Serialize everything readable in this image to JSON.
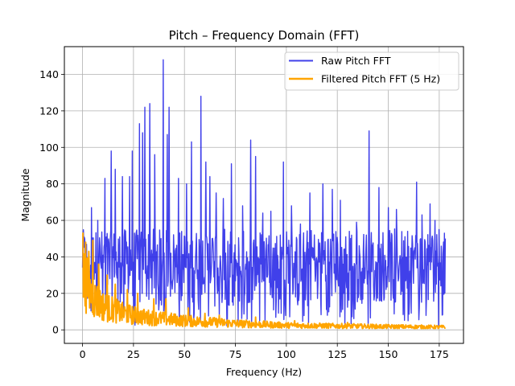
{
  "chart_data": {
    "type": "line",
    "title": "Pitch – Frequency Domain (FFT)",
    "xlabel": "Frequency (Hz)",
    "ylabel": "Magnitude",
    "xlim": [
      -8.9,
      186.9
    ],
    "ylim": [
      -7.4,
      155.2
    ],
    "xticks": [
      0,
      25,
      50,
      75,
      100,
      125,
      150,
      175
    ],
    "yticks": [
      0,
      20,
      40,
      60,
      80,
      100,
      120,
      140
    ],
    "grid": true,
    "legend_position": "top-right",
    "series": [
      {
        "name": "Raw Pitch FFT",
        "color": "#1f1fe6",
        "x_range": [
          0,
          178
        ],
        "peaks": [
          {
            "x": 0.3,
            "y": 52
          },
          {
            "x": 4.5,
            "y": 67
          },
          {
            "x": 7.5,
            "y": 60
          },
          {
            "x": 11,
            "y": 83
          },
          {
            "x": 14,
            "y": 98
          },
          {
            "x": 16,
            "y": 88
          },
          {
            "x": 19.5,
            "y": 84
          },
          {
            "x": 23,
            "y": 84
          },
          {
            "x": 24.5,
            "y": 98
          },
          {
            "x": 28,
            "y": 113
          },
          {
            "x": 29.5,
            "y": 108
          },
          {
            "x": 30.5,
            "y": 122
          },
          {
            "x": 33,
            "y": 124
          },
          {
            "x": 35.5,
            "y": 96
          },
          {
            "x": 39.5,
            "y": 148
          },
          {
            "x": 41.5,
            "y": 107
          },
          {
            "x": 42.5,
            "y": 122
          },
          {
            "x": 47,
            "y": 83
          },
          {
            "x": 51,
            "y": 80
          },
          {
            "x": 53.5,
            "y": 103
          },
          {
            "x": 58,
            "y": 128
          },
          {
            "x": 60.5,
            "y": 92
          },
          {
            "x": 62.5,
            "y": 84
          },
          {
            "x": 65.5,
            "y": 75
          },
          {
            "x": 69,
            "y": 72
          },
          {
            "x": 73,
            "y": 91
          },
          {
            "x": 78.5,
            "y": 68
          },
          {
            "x": 82.5,
            "y": 104
          },
          {
            "x": 85,
            "y": 95
          },
          {
            "x": 88.5,
            "y": 64
          },
          {
            "x": 92.5,
            "y": 65
          },
          {
            "x": 98.5,
            "y": 92
          },
          {
            "x": 102.5,
            "y": 68
          },
          {
            "x": 107,
            "y": 58
          },
          {
            "x": 111.5,
            "y": 75
          },
          {
            "x": 118,
            "y": 80
          },
          {
            "x": 122.5,
            "y": 77
          },
          {
            "x": 126.5,
            "y": 71
          },
          {
            "x": 131,
            "y": 54
          },
          {
            "x": 134.5,
            "y": 59
          },
          {
            "x": 140.5,
            "y": 109
          },
          {
            "x": 145.5,
            "y": 78
          },
          {
            "x": 150,
            "y": 67
          },
          {
            "x": 154,
            "y": 66
          },
          {
            "x": 159.5,
            "y": 54
          },
          {
            "x": 164,
            "y": 81
          },
          {
            "x": 166.5,
            "y": 63
          },
          {
            "x": 170.5,
            "y": 69
          },
          {
            "x": 173,
            "y": 60
          },
          {
            "x": 175,
            "y": 55
          },
          {
            "x": 177.5,
            "y": 53
          }
        ],
        "typical_band": [
          15,
          60
        ],
        "floor_min": 2
      },
      {
        "name": "Filtered Pitch FFT (5 Hz)",
        "color": "#ffa500",
        "x_range": [
          0,
          178
        ],
        "start_value": 53,
        "decay_points": [
          {
            "x": 0,
            "y": 30
          },
          {
            "x": 5,
            "y": 18
          },
          {
            "x": 10,
            "y": 13
          },
          {
            "x": 20,
            "y": 9
          },
          {
            "x": 30,
            "y": 7
          },
          {
            "x": 50,
            "y": 5
          },
          {
            "x": 75,
            "y": 3.5
          },
          {
            "x": 100,
            "y": 2.5
          },
          {
            "x": 150,
            "y": 1.8
          },
          {
            "x": 178,
            "y": 1.5
          }
        ],
        "spikes": [
          {
            "x": 0.3,
            "y": 53
          },
          {
            "x": 1.5,
            "y": 48
          },
          {
            "x": 3,
            "y": 43
          },
          {
            "x": 5,
            "y": 49
          },
          {
            "x": 8,
            "y": 36
          },
          {
            "x": 12,
            "y": 30
          },
          {
            "x": 16,
            "y": 25
          },
          {
            "x": 22,
            "y": 22
          },
          {
            "x": 27,
            "y": 20
          },
          {
            "x": 35,
            "y": 17
          },
          {
            "x": 41,
            "y": 17
          },
          {
            "x": 52,
            "y": 12
          },
          {
            "x": 60,
            "y": 9
          },
          {
            "x": 67,
            "y": 8
          },
          {
            "x": 85,
            "y": 7
          },
          {
            "x": 104,
            "y": 5
          },
          {
            "x": 130,
            "y": 4
          }
        ]
      }
    ]
  }
}
